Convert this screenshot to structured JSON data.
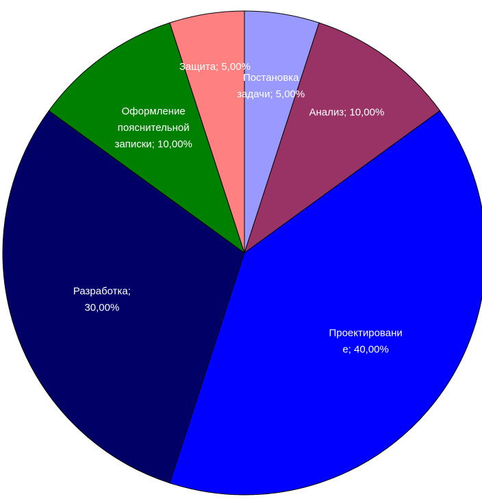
{
  "chart_data": {
    "type": "pie",
    "start_angle": "12 o'clock",
    "direction": "clockwise",
    "slices": [
      {
        "label": "Постановка задачи",
        "value": 5.0,
        "value_label": "5,00%",
        "color": "#9999ff",
        "label_lines": [
          "Постановка",
          "задачи; 5,00%"
        ]
      },
      {
        "label": "Анализ",
        "value": 10.0,
        "value_label": "10,00%",
        "color": "#993366",
        "label_lines": [
          "Анализ; 10,00%"
        ]
      },
      {
        "label": "Проектирование",
        "value": 40.0,
        "value_label": "40,00%",
        "color": "#0000ff",
        "label_lines": [
          "Проектировани",
          "е; 40,00%"
        ]
      },
      {
        "label": "Разработка",
        "value": 30.0,
        "value_label": "30,00%",
        "color": "#000066",
        "label_lines": [
          "Разработка;",
          "30,00%"
        ]
      },
      {
        "label": "Оформление пояснительной записки",
        "value": 10.0,
        "value_label": "10,00%",
        "color": "#008000",
        "label_lines": [
          "Оформление",
          "пояснительной",
          "записки; 10,00%"
        ]
      },
      {
        "label": "Защита",
        "value": 5.0,
        "value_label": "5,00%",
        "color": "#ff8080",
        "label_lines": [
          "Защита; 5,00%"
        ]
      }
    ]
  }
}
